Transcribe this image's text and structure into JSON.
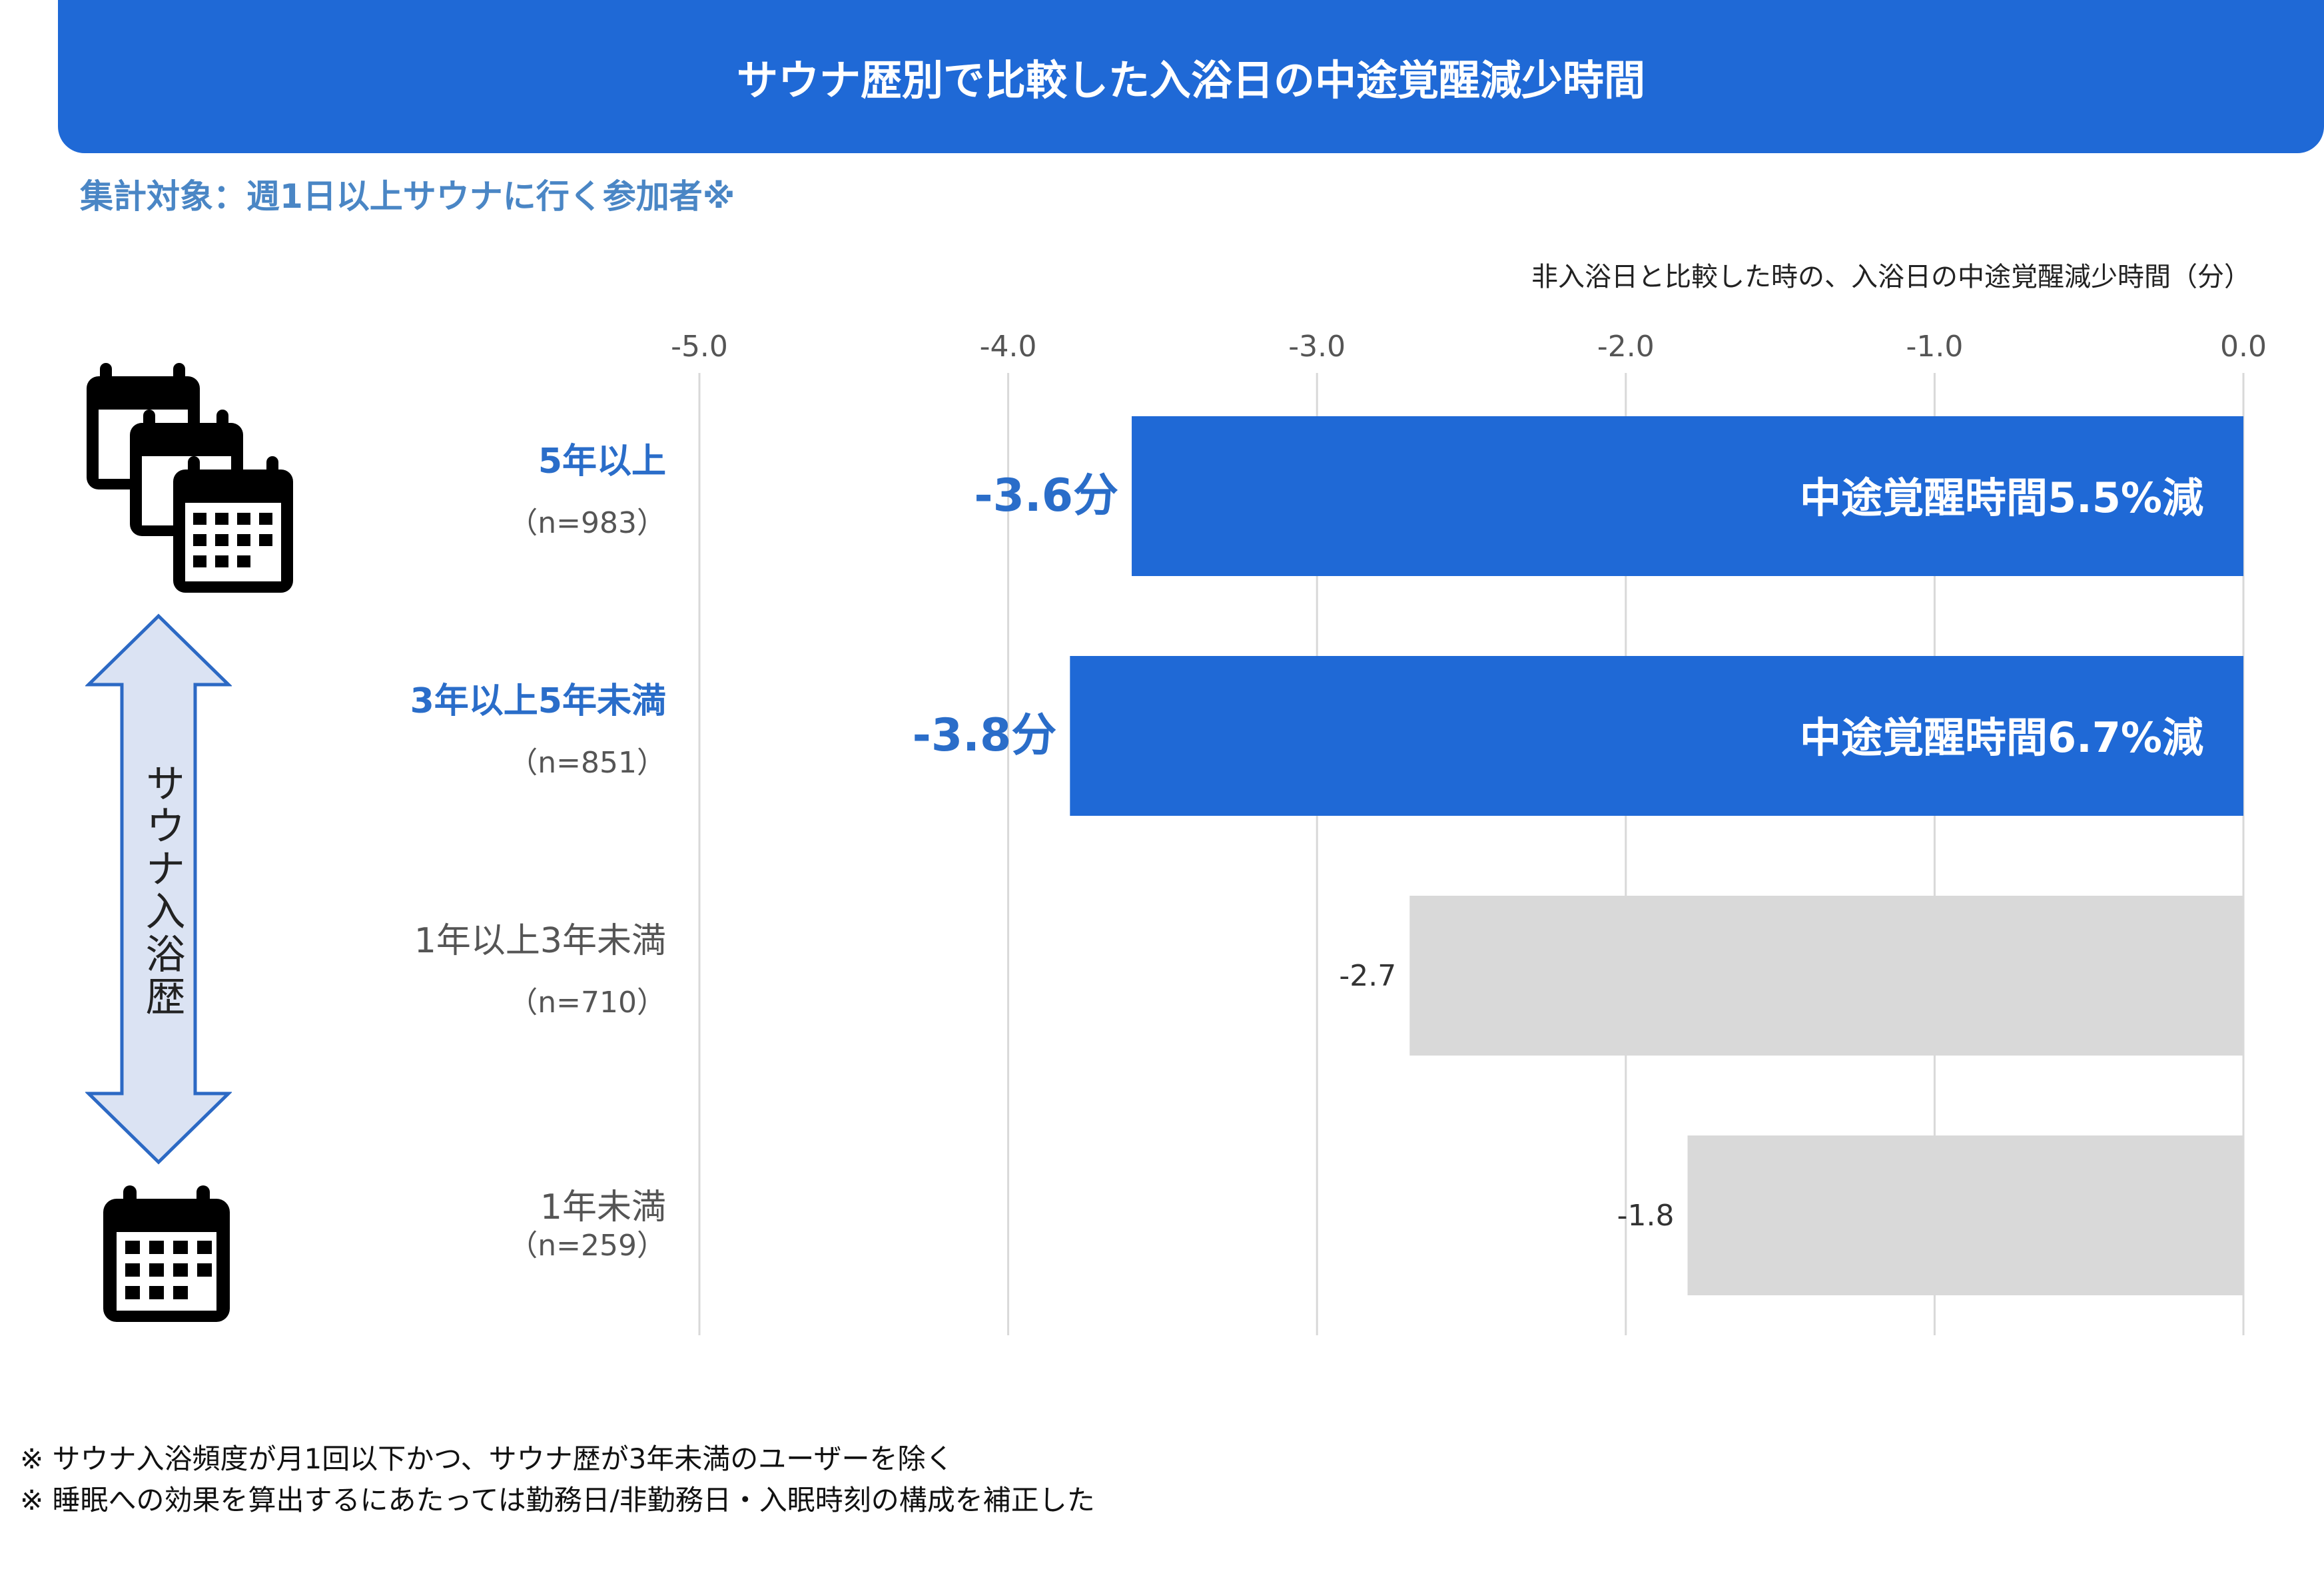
{
  "title": "サウナ歴別で比較した入浴日の中途覚醒減少時間",
  "subtitle": "集計対象：週1日以上サウナに行く参加者※",
  "unit_label": "非入浴日と比較した時の、入浴日の中途覚醒減少時間（分）",
  "axis_side_label": "サウナ入浴歴",
  "colors": {
    "highlight": "#1f69d6",
    "muted": "#d9d9d9",
    "highlight_text": "#2a6dc9",
    "muted_text": "#555555"
  },
  "chart_data": {
    "type": "bar",
    "orientation": "horizontal",
    "categories": [
      "5年以上",
      "3年以上5年未満",
      "1年以上3年未満",
      "1年未満"
    ],
    "sample_sizes": [
      "（n=983）",
      "（n=851）",
      "（n=710）",
      "（n=259）"
    ],
    "values": [
      -3.6,
      -3.8,
      -2.7,
      -1.8
    ],
    "value_labels": [
      "-3.6分",
      "-3.8分",
      "-2.7",
      "-1.8"
    ],
    "inside_labels": [
      "中途覚醒時間5.5%減",
      "中途覚醒時間6.7%減",
      "",
      ""
    ],
    "highlighted": [
      true,
      true,
      false,
      false
    ],
    "xlim": [
      -5.0,
      0.0
    ],
    "xticks": [
      "-5.0",
      "-4.0",
      "-3.0",
      "-2.0",
      "-1.0",
      "0.0"
    ],
    "grid": true
  },
  "footnotes": [
    "※ サウナ入浴頻度が月1回以下かつ、サウナ歴が3年未満のユーザーを除く",
    "※ 睡眠への効果を算出するにあたっては勤務日/非勤務日・入眠時刻の構成を補正した"
  ],
  "icons": [
    "calendar-stack-icon",
    "double-arrow-icon",
    "calendar-icon"
  ]
}
